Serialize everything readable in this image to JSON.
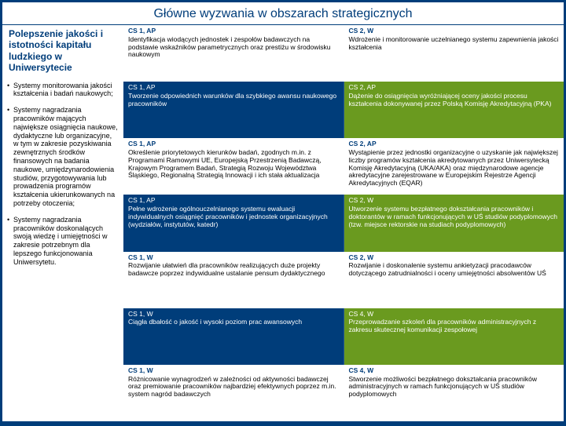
{
  "title": "Główne wyzwania w obszarach strategicznych",
  "left": {
    "heading": "Polepszenie jakości i istotności kapitału ludzkiego w Uniwersytecie",
    "bullets": [
      "Systemy monitorowania jakości kształcenia i badań naukowych;",
      "Systemy nagradzania pracowników mających największe osiągnięcia naukowe, dydaktyczne lub organizacyjne, w tym w zakresie pozyskiwania zewnętrznych środków finansowych na badania naukowe, umiędzynarodowienia studiów, przygotowywania lub prowadzenia programów kształcenia ukierunkowanych na potrzeby otoczenia;",
      "Systemy nagradzania pracowników doskonalących swoją wiedzę i umiejętności w zakresie potrzebnym dla lepszego funkcjonowania Uniwersytetu."
    ]
  },
  "rows": [
    {
      "style": "white",
      "l": {
        "label": "CS 1, AP",
        "text": "Identyfikacja wiodących jednostek i zespołów badawczych na podstawie wskaźników parametrycznych oraz prestiżu w środowisku naukowym"
      },
      "r": {
        "label": "CS 2, W",
        "text": "Wdrożenie i monitorowanie uczelnianego systemu zapewnienia jakości kształcenia"
      }
    },
    {
      "style": "color",
      "l": {
        "label": "CS 1, AP",
        "text": "Tworzenie odpowiednich warunków dla szybkiego awansu naukowego pracowników"
      },
      "r": {
        "label": "CS 2, AP",
        "text": "Dążenie do osiągnięcia wyróżniającej oceny jakości procesu kształcenia dokonywanej przez Polską Komisję Akredytacyjną (PKA)"
      }
    },
    {
      "style": "white",
      "l": {
        "label": "CS 1, AP",
        "text": "Określenie priorytetowych kierunków badań, zgodnych m.in. z Programami Ramowymi UE, Europejską Przestrzenią Badawczą, Krajowym Programem Badań, Strategią Rozwoju Województwa Śląskiego, Regionalną Strategią Innowacji i ich stała aktualizacja"
      },
      "r": {
        "label": "CS 2, AP",
        "text": "Wystąpienie przez jednostki organizacyjne o uzyskanie jak największej liczby programów kształcenia akredytowanych przez Uniwersytecką Komisję Akredytacyjną (UKA/AKA) oraz międzynarodowe agencje akredytacyjne zarejestrowane w Europejskim Rejestrze Agencji Akredytacyjnych (EQAR)"
      }
    },
    {
      "style": "color",
      "l": {
        "label": "CS 1, AP",
        "text": "Pełne wdrożenie ogólnouczelnianego systemu ewaluacji indywidualnych osiągnięć pracowników i jednostek organizacyjnych (wydziałów, instytutów, katedr)"
      },
      "r": {
        "label": "CS 2, W",
        "text": "Utworzenie systemu bezpłatnego dokształcania pracowników i doktorantów w ramach funkcjonujących w UŚ studiów podyplomowych (tzw. miejsce rektorskie na studiach podyplomowych)"
      }
    },
    {
      "style": "white",
      "l": {
        "label": "CS 1, W",
        "text": "Rozwijanie ułatwień dla pracowników realizujących duże projekty badawcze poprzez indywidualne ustalanie pensum dydaktycznego"
      },
      "r": {
        "label": "CS 2, W",
        "text": "Rozwijanie i doskonalenie systemu ankietyzacji pracodawców dotyczącego zatrudnialności i oceny umiejętności absolwentów UŚ"
      }
    },
    {
      "style": "color",
      "l": {
        "label": "CS 1, W",
        "text": "Ciągła dbałość o jakość i wysoki poziom prac awansowych"
      },
      "r": {
        "label": "CS 4, W",
        "text": "Przeprowadzanie szkoleń dla pracowników administracyjnych z zakresu skutecznej komunikacji zespołowej"
      }
    },
    {
      "style": "white",
      "l": {
        "label": "CS 1, W",
        "text": "Różnicowanie wynagrodzeń w zależności od aktywności badawczej oraz premiowanie pracowników najbardziej efektywnych poprzez m.in. system nagród badawczych"
      },
      "r": {
        "label": "CS 4, W",
        "text": "Stworzenie możliwości bezpłatnego dokształcania pracowników administracyjnych w ramach funkcjonujących w UŚ studiów podyplomowych"
      }
    }
  ]
}
